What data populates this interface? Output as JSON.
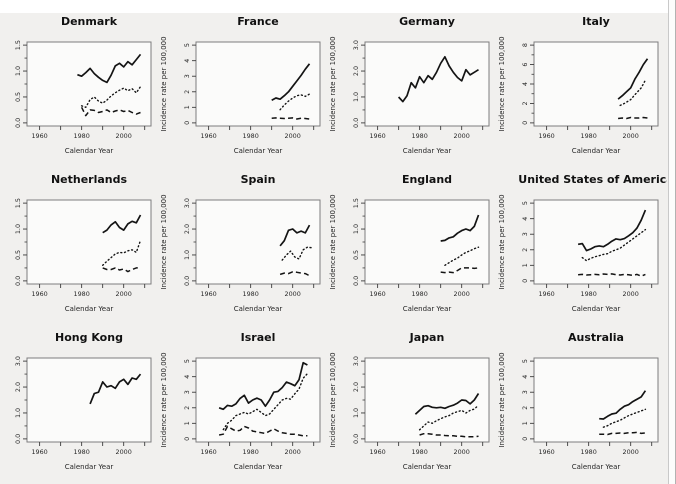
{
  "figure": {
    "background": "#f1f0ee",
    "panel_background": "#fbfbfa",
    "panel_border": "#7d7d7d",
    "line_color": "#141414",
    "tick_color": "#3c3c3c"
  },
  "x_axis": {
    "label": "Calendar Year",
    "xlim": [
      1954,
      2013
    ],
    "ticks": [
      1960,
      1970,
      1980,
      1990,
      2000,
      2010
    ],
    "labeled_ticks": [
      1960,
      1980,
      2000
    ]
  },
  "chart_data": [
    {
      "type": "line",
      "title": "Denmark",
      "ylabel": "Incidence rate per 100,000",
      "xlabel": "Calendar Year",
      "ylim": [
        0,
        1.5
      ],
      "yticks": [
        0,
        0.5,
        1,
        1.5
      ],
      "ytick_labels": [
        "0.0",
        "0.5",
        "1.0",
        "1.5"
      ],
      "yticks_minor": [
        0.25,
        0.75,
        1.25
      ],
      "series": [
        {
          "name": "solid",
          "style": "solid",
          "x_start": 1978,
          "x_step": 2,
          "y": [
            0.93,
            0.9,
            0.97,
            1.05,
            0.95,
            0.88,
            0.82,
            0.78,
            0.92,
            1.1,
            1.15,
            1.08,
            1.18,
            1.12,
            1.22,
            1.32
          ]
        },
        {
          "name": "dotted",
          "style": "dotted",
          "x_start": 1980,
          "x_step": 2,
          "y": [
            0.33,
            0.3,
            0.45,
            0.5,
            0.42,
            0.38,
            0.44,
            0.52,
            0.58,
            0.63,
            0.67,
            0.62,
            0.66,
            0.58,
            0.7
          ]
        },
        {
          "name": "dashed",
          "style": "dashed",
          "x_start": 1980,
          "x_step": 2,
          "y": [
            0.3,
            0.14,
            0.25,
            0.24,
            0.2,
            0.22,
            0.25,
            0.2,
            0.23,
            0.25,
            0.22,
            0.24,
            0.2,
            0.17,
            0.2
          ]
        }
      ]
    },
    {
      "type": "line",
      "title": "France",
      "ylabel": "Incidence rate per 100,000",
      "xlabel": "Calendar Year",
      "ylim": [
        0,
        5
      ],
      "yticks": [
        0,
        1,
        2,
        3,
        4,
        5
      ],
      "ytick_labels": [
        "0",
        "1",
        "2",
        "3",
        "4",
        "5"
      ],
      "yticks_minor": [],
      "series": [
        {
          "name": "solid",
          "style": "solid",
          "x_start": 1990,
          "x_step": 2,
          "y": [
            1.45,
            1.6,
            1.52,
            1.75,
            2.0,
            2.35,
            2.7,
            3.05,
            3.45,
            3.8
          ]
        },
        {
          "name": "dotted",
          "style": "dotted",
          "x_start": 1994,
          "x_step": 2,
          "y": [
            0.85,
            1.15,
            1.4,
            1.6,
            1.75,
            1.8,
            1.7,
            1.85
          ]
        },
        {
          "name": "dashed",
          "style": "dashed",
          "x_start": 1990,
          "x_step": 2,
          "y": [
            0.3,
            0.32,
            0.3,
            0.28,
            0.3,
            0.32,
            0.25,
            0.3,
            0.28,
            0.25
          ]
        }
      ]
    },
    {
      "type": "line",
      "title": "Germany",
      "ylabel": "Incidence rate per 100,000",
      "xlabel": "Calendar Year",
      "ylim": [
        0,
        3
      ],
      "yticks": [
        0,
        1,
        2,
        3
      ],
      "ytick_labels": [
        "0.0",
        "1.0",
        "2.0",
        "3.0"
      ],
      "yticks_minor": [
        0.5,
        1.5,
        2.5
      ],
      "series": [
        {
          "name": "solid",
          "style": "solid",
          "x_start": 1970,
          "x_step": 2,
          "y": [
            1.0,
            0.82,
            1.05,
            1.55,
            1.35,
            1.78,
            1.55,
            1.82,
            1.68,
            1.95,
            2.3,
            2.55,
            2.2,
            1.95,
            1.75,
            1.62,
            2.05,
            1.85,
            1.95,
            2.05
          ]
        }
      ]
    },
    {
      "type": "line",
      "title": "Italy",
      "ylabel": "Incidence rate per 100,000",
      "xlabel": "Calendar Year",
      "ylim": [
        0,
        8
      ],
      "yticks": [
        0,
        2,
        4,
        6,
        8
      ],
      "ytick_labels": [
        "0",
        "2",
        "4",
        "6",
        "8"
      ],
      "yticks_minor": [
        1,
        3,
        5,
        7
      ],
      "series": [
        {
          "name": "solid",
          "style": "solid",
          "x_start": 1994,
          "x_step": 2,
          "y": [
            2.45,
            2.8,
            3.2,
            3.6,
            4.5,
            5.2,
            6.0,
            6.6
          ]
        },
        {
          "name": "dotted",
          "style": "dotted",
          "x": [
            1995,
            1997,
            2000,
            2002,
            2005,
            2007
          ],
          "y": [
            1.8,
            2.0,
            2.4,
            2.9,
            3.6,
            4.4
          ]
        },
        {
          "name": "dashed",
          "style": "dashed",
          "x_start": 1994,
          "x_step": 2,
          "y": [
            0.45,
            0.5,
            0.45,
            0.55,
            0.5,
            0.5,
            0.55,
            0.5
          ]
        }
      ]
    },
    {
      "type": "line",
      "title": "Netherlands",
      "ylabel": "Incidence rate per 100,000",
      "xlabel": "Calendar Year",
      "ylim": [
        0,
        1.5
      ],
      "yticks": [
        0,
        0.5,
        1,
        1.5
      ],
      "ytick_labels": [
        "0.0",
        "0.5",
        "1.0",
        "1.5"
      ],
      "yticks_minor": [
        0.25,
        0.75,
        1.25
      ],
      "series": [
        {
          "name": "solid",
          "style": "solid",
          "x_start": 1990,
          "x_step": 2,
          "y": [
            0.93,
            0.98,
            1.08,
            1.14,
            1.03,
            0.98,
            1.1,
            1.15,
            1.12,
            1.27
          ]
        },
        {
          "name": "dotted",
          "style": "dotted",
          "x_start": 1990,
          "x_step": 2,
          "y": [
            0.3,
            0.38,
            0.45,
            0.52,
            0.55,
            0.54,
            0.58,
            0.6,
            0.55,
            0.78
          ]
        },
        {
          "name": "dashed",
          "style": "dashed",
          "x_start": 1990,
          "x_step": 2,
          "y": [
            0.25,
            0.22,
            0.22,
            0.25,
            0.21,
            0.23,
            0.18,
            0.22,
            0.25,
            0.25
          ]
        }
      ]
    },
    {
      "type": "line",
      "title": "Spain",
      "ylabel": "Incidence rate per 100,000",
      "xlabel": "Calendar Year",
      "ylim": [
        0,
        3
      ],
      "yticks": [
        0,
        1,
        2,
        3
      ],
      "ytick_labels": [
        "0.0",
        "1.0",
        "2.0",
        "3.0"
      ],
      "yticks_minor": [
        0.5,
        1.5,
        2.5
      ],
      "series": [
        {
          "name": "solid",
          "style": "solid",
          "x_start": 1994,
          "x_step": 2,
          "y": [
            1.35,
            1.55,
            1.95,
            2.0,
            1.85,
            1.92,
            1.85,
            2.15
          ]
        },
        {
          "name": "dotted",
          "style": "dotted",
          "x_start": 1995,
          "x_step": 2,
          "y": [
            0.8,
            1.0,
            1.15,
            0.92,
            0.85,
            1.2,
            1.3,
            1.28
          ]
        },
        {
          "name": "dashed",
          "style": "dashed",
          "x_start": 1994,
          "x_step": 2,
          "y": [
            0.25,
            0.3,
            0.28,
            0.35,
            0.33,
            0.3,
            0.28,
            0.2
          ]
        }
      ]
    },
    {
      "type": "line",
      "title": "England",
      "ylabel": "Incidence rate per 100,000",
      "xlabel": "Calendar Year",
      "ylim": [
        0,
        1.5
      ],
      "yticks": [
        0,
        0.5,
        1,
        1.5
      ],
      "ytick_labels": [
        "0.0",
        "0.5",
        "1.0",
        "1.5"
      ],
      "yticks_minor": [
        0.25,
        0.75,
        1.25
      ],
      "series": [
        {
          "name": "solid",
          "style": "solid",
          "x_start": 1990,
          "x_step": 2,
          "y": [
            0.77,
            0.78,
            0.83,
            0.85,
            0.92,
            0.97,
            1.0,
            0.97,
            1.05,
            1.27
          ]
        },
        {
          "name": "dotted",
          "style": "dotted",
          "x_start": 1992,
          "x_step": 2,
          "y": [
            0.3,
            0.35,
            0.4,
            0.44,
            0.5,
            0.55,
            0.58,
            0.62,
            0.65
          ]
        },
        {
          "name": "dashed",
          "style": "dashed",
          "x_start": 1990,
          "x_step": 2,
          "y": [
            0.17,
            0.16,
            0.17,
            0.16,
            0.2,
            0.25,
            0.25,
            0.25,
            0.24,
            0.25
          ]
        }
      ]
    },
    {
      "type": "line",
      "title": "United States of America",
      "ylabel": "Incidence rate per 100,000",
      "xlabel": "Calendar Year",
      "ylim": [
        0,
        5
      ],
      "yticks": [
        0,
        1,
        2,
        3,
        4,
        5
      ],
      "ytick_labels": [
        "0",
        "1",
        "2",
        "3",
        "4",
        "5"
      ],
      "yticks_minor": [],
      "series": [
        {
          "name": "solid",
          "style": "solid",
          "x_start": 1975,
          "x_step": 2,
          "y": [
            2.35,
            2.4,
            1.95,
            2.05,
            2.2,
            2.25,
            2.2,
            2.35,
            2.55,
            2.7,
            2.65,
            2.72,
            2.9,
            3.1,
            3.4,
            3.9,
            4.55
          ]
        },
        {
          "name": "dotted",
          "style": "dotted",
          "x_start": 1977,
          "x_step": 2,
          "y": [
            1.5,
            1.3,
            1.45,
            1.55,
            1.62,
            1.7,
            1.75,
            1.9,
            2.0,
            2.1,
            2.3,
            2.5,
            2.7,
            2.9,
            3.1,
            3.3
          ]
        },
        {
          "name": "dashed",
          "style": "dashed",
          "x_start": 1975,
          "x_step": 2,
          "y": [
            0.4,
            0.42,
            0.38,
            0.4,
            0.42,
            0.4,
            0.44,
            0.42,
            0.45,
            0.4,
            0.38,
            0.42,
            0.4,
            0.35,
            0.42,
            0.3,
            0.42
          ]
        }
      ]
    },
    {
      "type": "line",
      "title": "Hong Kong",
      "ylabel": "Incidence rate per 100,000",
      "xlabel": "Calendar Year",
      "ylim": [
        0,
        3
      ],
      "yticks": [
        0,
        1,
        2,
        3
      ],
      "ytick_labels": [
        "0.0",
        "1.0",
        "2.0",
        "3.0"
      ],
      "yticks_minor": [
        0.5,
        1.5,
        2.5
      ],
      "series": [
        {
          "name": "solid",
          "style": "solid",
          "x_start": 1984,
          "x_step": 2,
          "y": [
            1.35,
            1.75,
            1.8,
            2.2,
            2.0,
            2.05,
            1.95,
            2.2,
            2.3,
            2.1,
            2.35,
            2.3,
            2.5
          ]
        }
      ]
    },
    {
      "type": "line",
      "title": "Israel",
      "ylabel": "Incidence rate per 100,000",
      "xlabel": "Calendar Year",
      "ylim": [
        0,
        5
      ],
      "yticks": [
        0,
        1,
        2,
        3,
        4,
        5
      ],
      "ytick_labels": [
        "0",
        "1",
        "2",
        "3",
        "4",
        "5"
      ],
      "yticks_minor": [],
      "series": [
        {
          "name": "solid",
          "style": "solid",
          "x_start": 1965,
          "x_step": 2,
          "y": [
            2.0,
            1.9,
            2.15,
            2.1,
            2.25,
            2.6,
            2.8,
            2.3,
            2.5,
            2.62,
            2.5,
            2.1,
            2.5,
            3.0,
            3.05,
            3.3,
            3.65,
            3.55,
            3.42,
            3.8,
            4.9,
            4.75
          ]
        },
        {
          "name": "dotted",
          "style": "dotted",
          "x_start": 1967,
          "x_step": 2,
          "y": [
            0.6,
            1.0,
            1.2,
            1.5,
            1.6,
            1.7,
            1.6,
            1.75,
            1.9,
            1.7,
            1.5,
            1.6,
            1.9,
            2.2,
            2.5,
            2.6,
            2.55,
            2.9,
            3.2,
            3.9,
            4.2
          ]
        },
        {
          "name": "dashed",
          "style": "dashed",
          "x_start": 1965,
          "x_step": 2,
          "y": [
            0.25,
            0.3,
            0.8,
            0.65,
            0.5,
            0.55,
            0.8,
            0.7,
            0.5,
            0.45,
            0.4,
            0.35,
            0.5,
            0.65,
            0.5,
            0.4,
            0.35,
            0.3,
            0.3,
            0.25,
            0.2,
            0.2
          ]
        }
      ]
    },
    {
      "type": "line",
      "title": "Japan",
      "ylabel": "Incidence rate per 100,000",
      "xlabel": "Calendar Year",
      "ylim": [
        0,
        3
      ],
      "yticks": [
        0,
        1,
        2,
        3
      ],
      "ytick_labels": [
        "0.0",
        "1.0",
        "2.0",
        "3.0"
      ],
      "yticks_minor": [
        0.5,
        1.5,
        2.5
      ],
      "series": [
        {
          "name": "solid",
          "style": "solid",
          "x_start": 1978,
          "x_step": 2,
          "y": [
            0.95,
            1.1,
            1.25,
            1.28,
            1.22,
            1.2,
            1.22,
            1.18,
            1.25,
            1.3,
            1.38,
            1.5,
            1.48,
            1.35,
            1.5,
            1.75
          ]
        },
        {
          "name": "dotted",
          "style": "dotted",
          "x_start": 1980,
          "x_step": 2,
          "y": [
            0.35,
            0.5,
            0.65,
            0.6,
            0.7,
            0.78,
            0.85,
            0.9,
            1.0,
            1.05,
            1.1,
            1.0,
            1.1,
            1.15,
            1.3
          ]
        },
        {
          "name": "dashed",
          "style": "dashed",
          "x_start": 1980,
          "x_step": 2,
          "y": [
            0.15,
            0.2,
            0.2,
            0.18,
            0.15,
            0.15,
            0.13,
            0.12,
            0.12,
            0.1,
            0.1,
            0.08,
            0.08,
            0.08,
            0.1
          ]
        }
      ]
    },
    {
      "type": "line",
      "title": "Australia",
      "ylabel": "Incidence rate per 100,000",
      "xlabel": "Calendar Year",
      "ylim": [
        0,
        5
      ],
      "yticks": [
        0,
        1,
        2,
        3,
        4,
        5
      ],
      "ytick_labels": [
        "0",
        "1",
        "2",
        "3",
        "4",
        "5"
      ],
      "yticks_minor": [],
      "series": [
        {
          "name": "solid",
          "style": "solid",
          "x_start": 1985,
          "x_step": 2,
          "y": [
            1.3,
            1.28,
            1.45,
            1.6,
            1.65,
            1.9,
            2.1,
            2.2,
            2.4,
            2.55,
            2.7,
            3.1
          ]
        },
        {
          "name": "dotted",
          "style": "dotted",
          "x_start": 1987,
          "x_step": 2,
          "y": [
            0.75,
            0.85,
            1.0,
            1.1,
            1.2,
            1.35,
            1.5,
            1.6,
            1.7,
            1.8,
            1.9
          ]
        },
        {
          "name": "dashed",
          "style": "dashed",
          "x_start": 1985,
          "x_step": 2,
          "y": [
            0.3,
            0.3,
            0.28,
            0.35,
            0.35,
            0.38,
            0.35,
            0.4,
            0.4,
            0.42,
            0.35,
            0.38
          ]
        }
      ]
    }
  ]
}
